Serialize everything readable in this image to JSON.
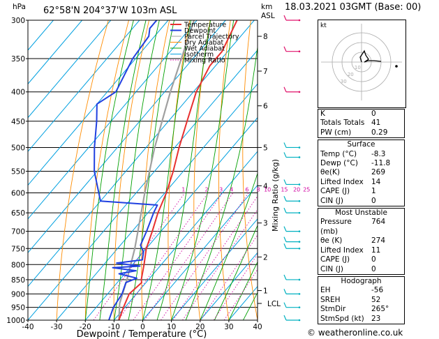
{
  "header": {
    "location": "62°58'N  204°37'W  103m  ASL",
    "datetime": "18.03.2021  03GMT  (Base: 00)",
    "hpa_label": "hPa",
    "km_label": "km",
    "asl_label": "ASL"
  },
  "chart_data": {
    "type": "skew-t",
    "xlabel": "Dewpoint / Temperature (°C)",
    "ylabel": "Mixing Ratio (g/kg)",
    "xlim": [
      -40,
      40
    ],
    "ylim_hpa": [
      1000,
      300
    ],
    "pressure_ticks": [
      300,
      350,
      400,
      450,
      500,
      550,
      600,
      650,
      700,
      750,
      800,
      850,
      900,
      950,
      1000
    ],
    "temperature_ticks": [
      -40,
      -30,
      -20,
      -10,
      0,
      10,
      20,
      30,
      40
    ],
    "km_ticks": [
      {
        "label": "8",
        "p": 320
      },
      {
        "label": "7",
        "p": 368
      },
      {
        "label": "6",
        "p": 423
      },
      {
        "label": "5",
        "p": 500
      },
      {
        "label": "4",
        "p": 583
      },
      {
        "label": "3",
        "p": 677
      },
      {
        "label": "2",
        "p": 776
      },
      {
        "label": "1",
        "p": 888
      },
      {
        "label": "LCL",
        "p": 935
      }
    ],
    "mixing_ratio_labels": [
      "1",
      "2",
      "3",
      "4",
      "6",
      "8",
      "10",
      "15",
      "20",
      "25"
    ],
    "legend": [
      "Temperature",
      "Dewpoint",
      "Parcel Trajectory",
      "Dry Adiabat",
      "Wet Adiabat",
      "Isotherm",
      "Mixing Ratio"
    ],
    "colors": {
      "temperature": "#e83030",
      "dewpoint": "#2040e0",
      "parcel": "#a0a0a0",
      "dry_adiabat": "#ff8c00",
      "wet_adiabat": "#00a000",
      "isotherm": "#00a0e0",
      "mixing_ratio": "#d000a0",
      "wind": "#00b0c0"
    },
    "temperature_profile": [
      {
        "p": 1000,
        "t": -8.3
      },
      {
        "p": 950,
        "t": -10.5
      },
      {
        "p": 900,
        "t": -12.5
      },
      {
        "p": 860,
        "t": -11.5
      },
      {
        "p": 850,
        "t": -12.5
      },
      {
        "p": 800,
        "t": -16
      },
      {
        "p": 750,
        "t": -20
      },
      {
        "p": 700,
        "t": -23
      },
      {
        "p": 650,
        "t": -26.5
      },
      {
        "p": 600,
        "t": -29.5
      },
      {
        "p": 550,
        "t": -33.5
      },
      {
        "p": 500,
        "t": -38.5
      },
      {
        "p": 450,
        "t": -43.5
      },
      {
        "p": 400,
        "t": -49
      },
      {
        "p": 360,
        "t": -52
      },
      {
        "p": 340,
        "t": -52
      },
      {
        "p": 300,
        "t": -56
      }
    ],
    "dewpoint_profile": [
      {
        "p": 1000,
        "t": -11.8
      },
      {
        "p": 950,
        "t": -14
      },
      {
        "p": 900,
        "t": -15
      },
      {
        "p": 860,
        "t": -17
      },
      {
        "p": 845,
        "t": -14.5
      },
      {
        "p": 830,
        "t": -22
      },
      {
        "p": 820,
        "t": -17
      },
      {
        "p": 810,
        "t": -26
      },
      {
        "p": 805,
        "t": -17
      },
      {
        "p": 795,
        "t": -26
      },
      {
        "p": 785,
        "t": -18
      },
      {
        "p": 760,
        "t": -20
      },
      {
        "p": 740,
        "t": -23
      },
      {
        "p": 700,
        "t": -25
      },
      {
        "p": 650,
        "t": -28
      },
      {
        "p": 630,
        "t": -29
      },
      {
        "p": 620,
        "t": -50
      },
      {
        "p": 550,
        "t": -61
      },
      {
        "p": 500,
        "t": -68
      },
      {
        "p": 450,
        "t": -75
      },
      {
        "p": 420,
        "t": -80
      },
      {
        "p": 400,
        "t": -77
      },
      {
        "p": 350,
        "t": -81
      },
      {
        "p": 320,
        "t": -82
      },
      {
        "p": 310,
        "t": -84
      },
      {
        "p": 300,
        "t": -84
      }
    ],
    "parcel_profile": [
      {
        "p": 1000,
        "t": -8.3
      },
      {
        "p": 935,
        "t": -13
      },
      {
        "p": 850,
        "t": -17.5
      },
      {
        "p": 750,
        "t": -24
      },
      {
        "p": 700,
        "t": -28
      },
      {
        "p": 600,
        "t": -37
      },
      {
        "p": 500,
        "t": -47
      },
      {
        "p": 400,
        "t": -58
      },
      {
        "p": 300,
        "t": -71
      }
    ]
  },
  "hodograph": {
    "unit_label": "kt",
    "ring_labels": [
      "10",
      "20",
      "30"
    ]
  },
  "indices": {
    "top": [
      {
        "label": "K",
        "value": "0"
      },
      {
        "label": "Totals Totals",
        "value": "41"
      },
      {
        "label": "PW (cm)",
        "value": "0.29"
      }
    ],
    "surface": {
      "title": "Surface",
      "rows": [
        {
          "label": "Temp (°C)",
          "value": "-8.3"
        },
        {
          "label": "Dewp (°C)",
          "value": "-11.8"
        },
        {
          "label": "θe(K)",
          "value": "269"
        },
        {
          "label": "Lifted Index",
          "value": "14"
        },
        {
          "label": "CAPE (J)",
          "value": "1"
        },
        {
          "label": "CIN (J)",
          "value": "0"
        }
      ]
    },
    "most_unstable": {
      "title": "Most Unstable",
      "rows": [
        {
          "label": "Pressure (mb)",
          "value": "764"
        },
        {
          "label": "θe (K)",
          "value": "274"
        },
        {
          "label": "Lifted Index",
          "value": "11"
        },
        {
          "label": "CAPE (J)",
          "value": "0"
        },
        {
          "label": "CIN (J)",
          "value": "0"
        }
      ]
    },
    "hodograph": {
      "title": "Hodograph",
      "rows": [
        {
          "label": "EH",
          "value": "-56"
        },
        {
          "label": "SREH",
          "value": "52"
        },
        {
          "label": "StmDir",
          "value": "265°"
        },
        {
          "label": "StmSpd (kt)",
          "value": "23"
        }
      ]
    }
  },
  "footer": {
    "copyright": "© weatheronline.co.uk"
  }
}
